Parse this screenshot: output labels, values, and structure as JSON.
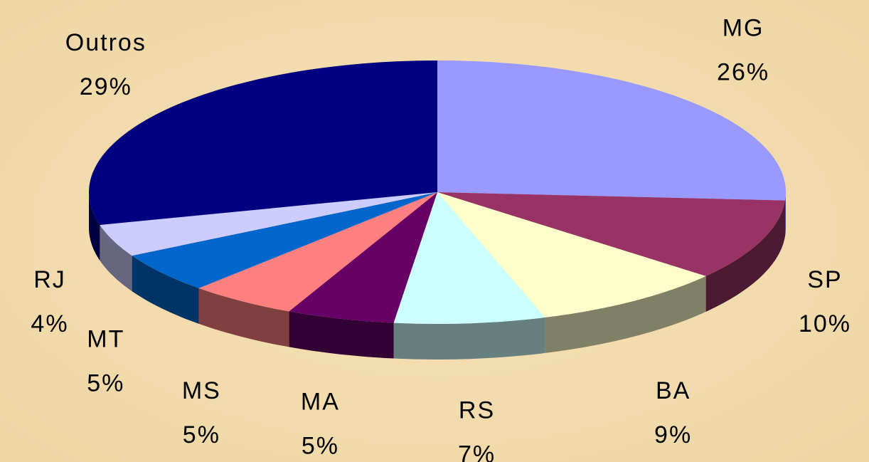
{
  "chart_data": {
    "type": "pie3d",
    "categories": [
      "MG",
      "SP",
      "BA",
      "RS",
      "MA",
      "MS",
      "MT",
      "RJ",
      "Outros"
    ],
    "values": [
      26,
      10,
      9,
      7,
      5,
      5,
      5,
      4,
      29
    ],
    "value_labels": [
      "26%",
      "10%",
      "9%",
      "7%",
      "5%",
      "5%",
      "5%",
      "4%",
      "29%"
    ],
    "colors": [
      "#9999ff",
      "#993366",
      "#ffffcc",
      "#ccffff",
      "#660066",
      "#ff8080",
      "#0066cc",
      "#ccccff",
      "#000080"
    ]
  }
}
